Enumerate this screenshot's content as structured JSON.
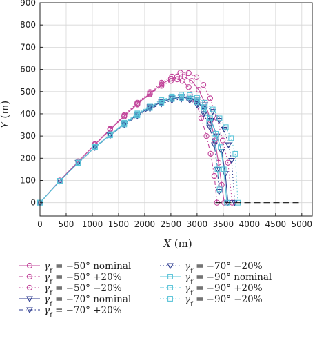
{
  "chart_data": {
    "type": "line",
    "xlabel": "X (m)",
    "ylabel": "Y (m)",
    "xlim": [
      0,
      5200
    ],
    "ylim": [
      -60,
      900
    ],
    "xticks": [
      0,
      500,
      1000,
      1500,
      2000,
      2500,
      3000,
      3500,
      4000,
      4500,
      5000
    ],
    "yticks": [
      0,
      100,
      200,
      300,
      400,
      500,
      600,
      700,
      800,
      900
    ],
    "grid": true,
    "legend_position": "below",
    "series": [
      {
        "name": "γf = −50° nominal",
        "color": "#c2449a",
        "dash": "solid",
        "marker": "circle",
        "x": [
          0,
          380,
          730,
          1050,
          1340,
          1610,
          1860,
          2100,
          2320,
          2500,
          2620,
          2760,
          2900,
          3030,
          3150,
          3260,
          3340,
          3410,
          3470,
          3520
        ],
        "y": [
          0,
          100,
          185,
          262,
          330,
          390,
          445,
          492,
          532,
          558,
          568,
          566,
          548,
          508,
          450,
          370,
          280,
          180,
          80,
          0
        ]
      },
      {
        "name": "γf = −50° +20%",
        "color": "#c2449a",
        "dash": "6,3,1.5,3",
        "marker": "circle",
        "x": [
          0,
          380,
          730,
          1050,
          1340,
          1610,
          1860,
          2100,
          2320,
          2500,
          2620,
          2720,
          2840,
          2970,
          3080,
          3180,
          3260,
          3330,
          3380
        ],
        "y": [
          0,
          100,
          185,
          261,
          328,
          388,
          442,
          488,
          526,
          548,
          555,
          548,
          520,
          460,
          380,
          300,
          220,
          120,
          0
        ]
      },
      {
        "name": "γf = −50° −20%",
        "color": "#c2449a",
        "dash": "1.5,3",
        "marker": "circle",
        "x": [
          0,
          380,
          730,
          1050,
          1340,
          1610,
          1860,
          2100,
          2320,
          2520,
          2680,
          2840,
          2990,
          3120,
          3250,
          3380,
          3490,
          3590,
          3670
        ],
        "y": [
          0,
          100,
          186,
          264,
          333,
          394,
          450,
          498,
          540,
          568,
          585,
          583,
          565,
          530,
          470,
          380,
          280,
          180,
          0
        ]
      },
      {
        "name": "γf = −70° nominal",
        "color": "#2b3a8f",
        "dash": "solid",
        "marker": "triangle",
        "x": [
          0,
          380,
          730,
          1050,
          1340,
          1610,
          1860,
          2100,
          2320,
          2520,
          2700,
          2860,
          3000,
          3140,
          3270,
          3380,
          3470,
          3540,
          3590
        ],
        "y": [
          0,
          98,
          180,
          250,
          305,
          355,
          395,
          428,
          452,
          468,
          474,
          470,
          455,
          420,
          370,
          300,
          230,
          130,
          0
        ]
      },
      {
        "name": "γf = −70° +20%",
        "color": "#2b3a8f",
        "dash": "6,3,1.5,3",
        "marker": "triangle",
        "x": [
          0,
          380,
          730,
          1050,
          1340,
          1610,
          1860,
          2100,
          2320,
          2520,
          2700,
          2860,
          3000,
          3130,
          3240,
          3330,
          3390,
          3420
        ],
        "y": [
          0,
          98,
          179,
          248,
          302,
          350,
          390,
          422,
          445,
          460,
          466,
          460,
          440,
          400,
          340,
          260,
          150,
          50
        ]
      },
      {
        "name": "γf = −70° −20%",
        "color": "#2b3a8f",
        "dash": "1.5,3",
        "marker": "triangle",
        "x": [
          0,
          380,
          730,
          1050,
          1340,
          1610,
          1860,
          2100,
          2320,
          2520,
          2700,
          2860,
          3000,
          3150,
          3300,
          3420,
          3520,
          3600,
          3660,
          3720
        ],
        "y": [
          0,
          98,
          181,
          252,
          307,
          358,
          398,
          432,
          456,
          472,
          478,
          476,
          462,
          440,
          410,
          370,
          330,
          260,
          190,
          0
        ]
      },
      {
        "name": "γf = −90° nominal",
        "color": "#5bc4d8",
        "dash": "solid",
        "marker": "square",
        "x": [
          0,
          380,
          730,
          1050,
          1340,
          1610,
          1860,
          2100,
          2320,
          2520,
          2700,
          2860,
          3000,
          3130,
          3250,
          3360,
          3450,
          3510,
          3570
        ],
        "y": [
          0,
          98,
          180,
          250,
          305,
          356,
          398,
          432,
          456,
          472,
          478,
          474,
          460,
          430,
          380,
          310,
          250,
          150,
          0
        ]
      },
      {
        "name": "γf = −90° +20%",
        "color": "#5bc4d8",
        "dash": "6,3,1.5,3",
        "marker": "square",
        "x": [
          0,
          380,
          730,
          1050,
          1340,
          1610,
          1860,
          2100,
          2320,
          2520,
          2700,
          2860,
          2990,
          3120,
          3230,
          3330,
          3390,
          3430
        ],
        "y": [
          0,
          98,
          179,
          249,
          303,
          352,
          393,
          426,
          450,
          466,
          472,
          468,
          452,
          418,
          365,
          290,
          150,
          60
        ]
      },
      {
        "name": "γf = −90° −20%",
        "color": "#5bc4d8",
        "dash": "1.5,3",
        "marker": "square",
        "x": [
          0,
          380,
          730,
          1050,
          1340,
          1610,
          1860,
          2100,
          2320,
          2520,
          2700,
          2860,
          3000,
          3150,
          3300,
          3430,
          3550,
          3650,
          3730,
          3780
        ],
        "y": [
          0,
          98,
          181,
          252,
          308,
          360,
          402,
          437,
          462,
          478,
          486,
          484,
          472,
          450,
          420,
          380,
          340,
          290,
          220,
          0
        ]
      },
      {
        "name": "",
        "color": "#111111",
        "dash": "9,5",
        "marker": "none",
        "x": [
          3350,
          5000
        ],
        "y": [
          0,
          0
        ]
      }
    ]
  },
  "legend": [
    {
      "sym": "γ",
      "sub": "f",
      "rest": " = −50° nominal"
    },
    {
      "sym": "γ",
      "sub": "f",
      "rest": " = −70° −20%"
    },
    {
      "sym": "γ",
      "sub": "f",
      "rest": " = −50° +20%"
    },
    {
      "sym": "γ",
      "sub": "f",
      "rest": " = −90° nominal"
    },
    {
      "sym": "γ",
      "sub": "f",
      "rest": " = −50° −20%"
    },
    {
      "sym": "γ",
      "sub": "f",
      "rest": " = −90° +20%"
    },
    {
      "sym": "γ",
      "sub": "f",
      "rest": " = −70° nominal"
    },
    {
      "sym": "γ",
      "sub": "f",
      "rest": " = −90° −20%"
    },
    {
      "sym": "γ",
      "sub": "f",
      "rest": " = −70° +20%"
    }
  ]
}
